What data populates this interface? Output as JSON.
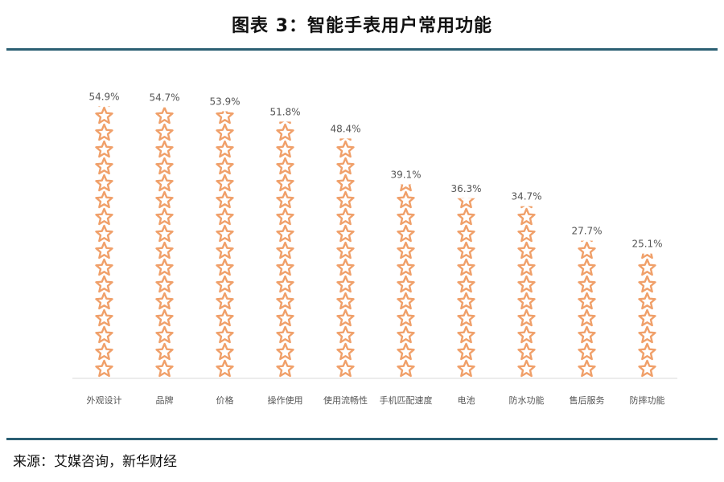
{
  "page": {
    "title": "图表 3：智能手表用户常用功能",
    "source": "来源：艾媒咨询，新华财经"
  },
  "colors": {
    "star": "#f0a06a",
    "rule": "#2b5f73",
    "label": "#555555",
    "axis": "#d9d9d9"
  },
  "chart_data": {
    "type": "bar",
    "title": "图表 3：智能手表用户常用功能",
    "xlabel": "",
    "ylabel": "",
    "ylim": [
      0,
      60
    ],
    "grid": false,
    "legend": "none",
    "marker": "star-icon",
    "categories": [
      "外观设计",
      "品牌",
      "价格",
      "操作使用",
      "使用流畅性",
      "手机匹配速度",
      "电池",
      "防水功能",
      "售后服务",
      "防摔功能"
    ],
    "values": [
      54.9,
      54.7,
      53.9,
      51.8,
      48.4,
      39.1,
      36.3,
      34.7,
      27.7,
      25.1
    ],
    "value_labels": [
      "54.9%",
      "54.7%",
      "53.9%",
      "51.8%",
      "48.4%",
      "39.1%",
      "36.3%",
      "34.7%",
      "27.7%",
      "25.1%"
    ]
  }
}
